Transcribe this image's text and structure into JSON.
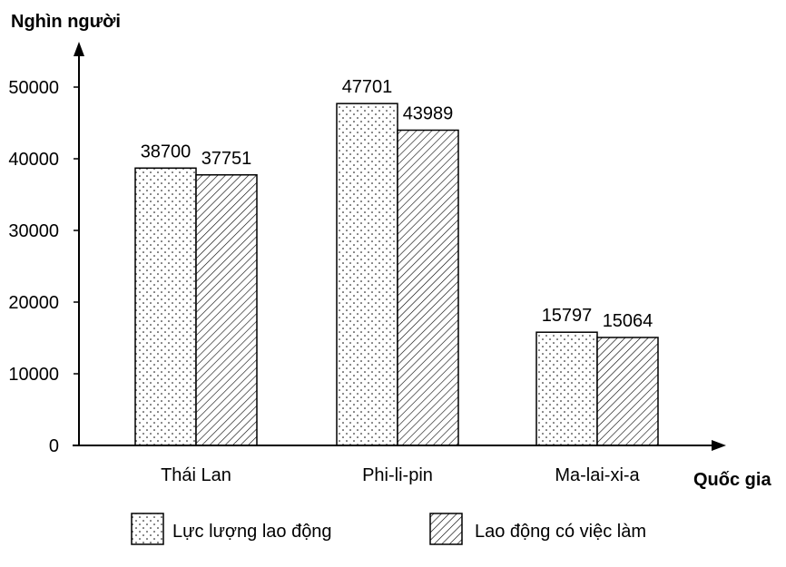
{
  "chart_data": {
    "type": "bar",
    "ylabel": "Nghìn người",
    "xlabel": "Quốc gia",
    "categories": [
      "Thái Lan",
      "Phi-li-pin",
      "Ma-lai-xi-a"
    ],
    "ylim": [
      0,
      50000
    ],
    "yticks": [
      0,
      10000,
      20000,
      30000,
      40000,
      50000
    ],
    "grid": false,
    "legend_position": "bottom",
    "series": [
      {
        "name": "Lực lượng lao động",
        "pattern": "dots",
        "values": [
          38700,
          47701,
          15797
        ]
      },
      {
        "name": "Lao động có việc làm",
        "pattern": "hatch",
        "values": [
          37751,
          43989,
          15064
        ]
      }
    ]
  },
  "colors": {
    "axis": "#000000",
    "bar_fill": "#ffffff",
    "pattern": "#000000"
  }
}
